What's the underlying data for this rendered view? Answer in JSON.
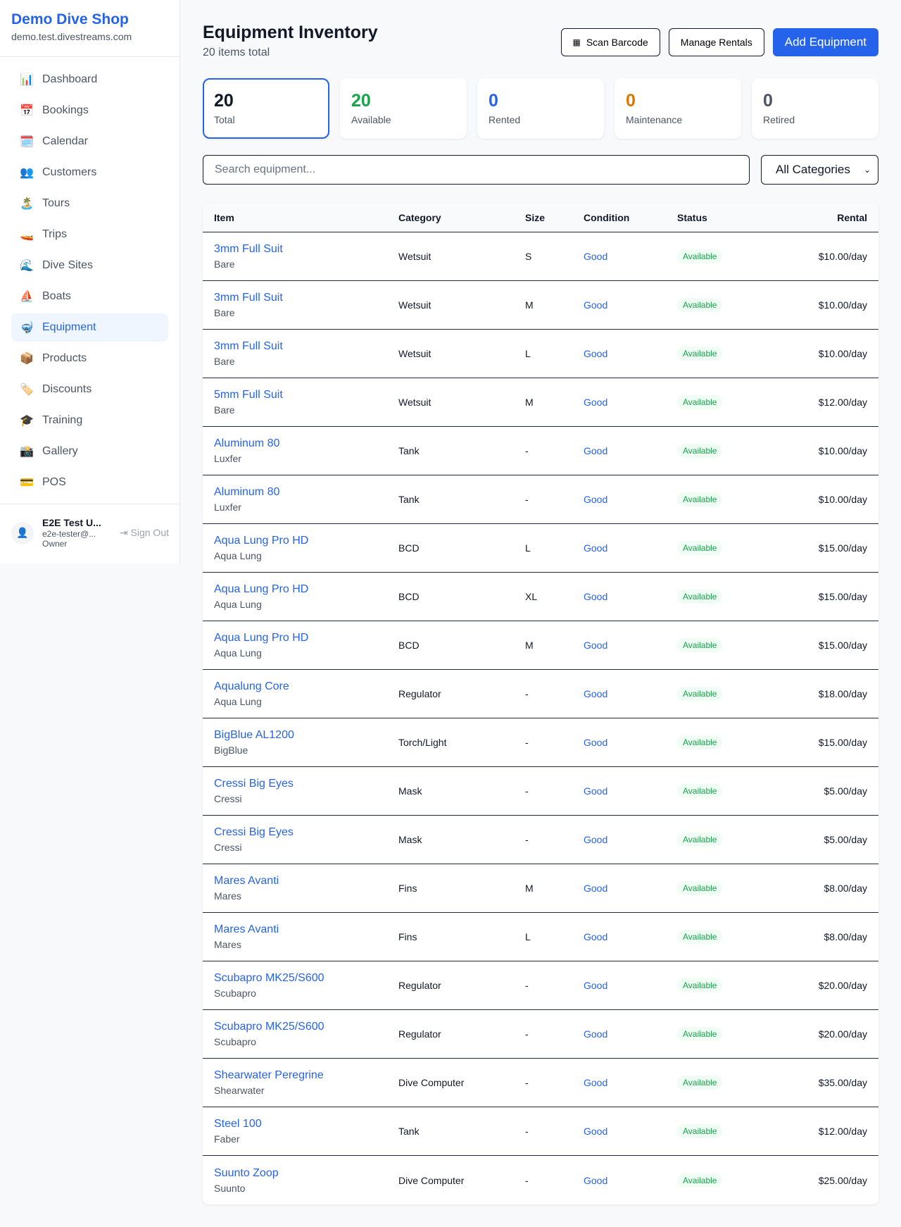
{
  "sidebar": {
    "brand": "Demo Dive Shop",
    "domain": "demo.test.divestreams.com",
    "items": [
      {
        "label": "Dashboard",
        "icon": "📊",
        "name": "chart-icon"
      },
      {
        "label": "Bookings",
        "icon": "📅",
        "name": "calendar-date-icon"
      },
      {
        "label": "Calendar",
        "icon": "🗓️",
        "name": "calendar-icon"
      },
      {
        "label": "Customers",
        "icon": "👥",
        "name": "people-icon"
      },
      {
        "label": "Tours",
        "icon": "🏝️",
        "name": "island-icon"
      },
      {
        "label": "Trips",
        "icon": "🚤",
        "name": "boat-icon"
      },
      {
        "label": "Dive Sites",
        "icon": "🌊",
        "name": "wave-icon"
      },
      {
        "label": "Boats",
        "icon": "⛵",
        "name": "sailboat-icon"
      },
      {
        "label": "Equipment",
        "icon": "🤿",
        "name": "mask-icon",
        "active": true
      },
      {
        "label": "Products",
        "icon": "📦",
        "name": "package-icon"
      },
      {
        "label": "Discounts",
        "icon": "🏷️",
        "name": "tag-icon"
      },
      {
        "label": "Training",
        "icon": "🎓",
        "name": "graduation-cap-icon"
      },
      {
        "label": "Gallery",
        "icon": "📸",
        "name": "camera-icon"
      },
      {
        "label": "POS",
        "icon": "💳",
        "name": "credit-card-icon"
      }
    ],
    "user": {
      "name": "E2E Test U...",
      "email": "e2e-tester@...",
      "role": "Owner",
      "sign_out": "Sign Out"
    }
  },
  "header": {
    "title": "Equipment Inventory",
    "subtitle": "20 items total",
    "scan": "Scan Barcode",
    "manage": "Manage Rentals",
    "add": "Add Equipment"
  },
  "stats": [
    {
      "value": "20",
      "label": "Total",
      "color": "#111827"
    },
    {
      "value": "20",
      "label": "Available",
      "color": "#16a34a"
    },
    {
      "value": "0",
      "label": "Rented",
      "color": "#2563eb"
    },
    {
      "value": "0",
      "label": "Maintenance",
      "color": "#d97706"
    },
    {
      "value": "0",
      "label": "Retired",
      "color": "#4b5563"
    }
  ],
  "filters": {
    "search_placeholder": "Search equipment...",
    "category": "All Categories"
  },
  "table": {
    "headers": [
      "Item",
      "Category",
      "Size",
      "Condition",
      "Status",
      "Rental"
    ],
    "rows": [
      [
        "3mm Full Suit",
        "Bare",
        "Wetsuit",
        "S",
        "Good",
        "Available",
        "$10.00/day"
      ],
      [
        "3mm Full Suit",
        "Bare",
        "Wetsuit",
        "M",
        "Good",
        "Available",
        "$10.00/day"
      ],
      [
        "3mm Full Suit",
        "Bare",
        "Wetsuit",
        "L",
        "Good",
        "Available",
        "$10.00/day"
      ],
      [
        "5mm Full Suit",
        "Bare",
        "Wetsuit",
        "M",
        "Good",
        "Available",
        "$12.00/day"
      ],
      [
        "Aluminum 80",
        "Luxfer",
        "Tank",
        "-",
        "Good",
        "Available",
        "$10.00/day"
      ],
      [
        "Aluminum 80",
        "Luxfer",
        "Tank",
        "-",
        "Good",
        "Available",
        "$10.00/day"
      ],
      [
        "Aqua Lung Pro HD",
        "Aqua Lung",
        "BCD",
        "L",
        "Good",
        "Available",
        "$15.00/day"
      ],
      [
        "Aqua Lung Pro HD",
        "Aqua Lung",
        "BCD",
        "XL",
        "Good",
        "Available",
        "$15.00/day"
      ],
      [
        "Aqua Lung Pro HD",
        "Aqua Lung",
        "BCD",
        "M",
        "Good",
        "Available",
        "$15.00/day"
      ],
      [
        "Aqualung Core",
        "Aqua Lung",
        "Regulator",
        "-",
        "Good",
        "Available",
        "$18.00/day"
      ],
      [
        "BigBlue AL1200",
        "BigBlue",
        "Torch/Light",
        "-",
        "Good",
        "Available",
        "$15.00/day"
      ],
      [
        "Cressi Big Eyes",
        "Cressi",
        "Mask",
        "-",
        "Good",
        "Available",
        "$5.00/day"
      ],
      [
        "Cressi Big Eyes",
        "Cressi",
        "Mask",
        "-",
        "Good",
        "Available",
        "$5.00/day"
      ],
      [
        "Mares Avanti",
        "Mares",
        "Fins",
        "M",
        "Good",
        "Available",
        "$8.00/day"
      ],
      [
        "Mares Avanti",
        "Mares",
        "Fins",
        "L",
        "Good",
        "Available",
        "$8.00/day"
      ],
      [
        "Scubapro MK25/S600",
        "Scubapro",
        "Regulator",
        "-",
        "Good",
        "Available",
        "$20.00/day"
      ],
      [
        "Scubapro MK25/S600",
        "Scubapro",
        "Regulator",
        "-",
        "Good",
        "Available",
        "$20.00/day"
      ],
      [
        "Shearwater Peregrine",
        "Shearwater",
        "Dive Computer",
        "-",
        "Good",
        "Available",
        "$35.00/day"
      ],
      [
        "Steel 100",
        "Faber",
        "Tank",
        "-",
        "Good",
        "Available",
        "$12.00/day"
      ],
      [
        "Suunto Zoop",
        "Suunto",
        "Dive Computer",
        "-",
        "Good",
        "Available",
        "$25.00/day"
      ]
    ]
  }
}
